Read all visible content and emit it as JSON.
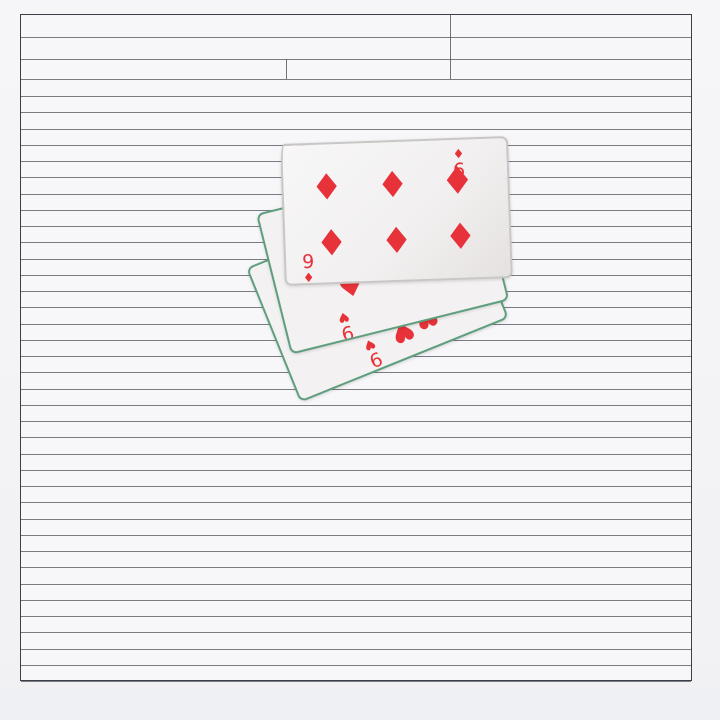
{
  "scene": {
    "description_free": true
  },
  "cards": [
    {
      "rank": "9",
      "suit": "diamond-icon",
      "suit_glyph": "♦",
      "color": "#e8323a"
    },
    {
      "rank": "9",
      "suit": "heart-icon",
      "suit_glyph": "♥",
      "color": "#e8323a"
    },
    {
      "rank": "9",
      "suit": "heart-icon",
      "suit_glyph": "♥",
      "color": "#e8323a"
    }
  ],
  "colors": {
    "paper": "#f7f7f9",
    "rule_lines": "#50535c",
    "card_edge": "#5f9e7e",
    "suit_red": "#e8323a"
  }
}
